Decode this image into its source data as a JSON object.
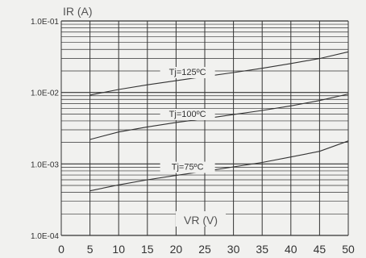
{
  "chart_data": {
    "type": "line",
    "title": "",
    "ylabel": "IR (A)",
    "xlabel": "VR (V)",
    "x_ticks": [
      "0",
      "5",
      "10",
      "15",
      "20",
      "25",
      "30",
      "35",
      "40",
      "45",
      "50"
    ],
    "y_ticks": [
      "1.0E-04",
      "1.0E-03",
      "1.0E-02",
      "1.0E-01"
    ],
    "xlim": [
      0,
      50
    ],
    "ylim": [
      0.0001,
      0.1
    ],
    "y_scale": "log",
    "grid": true,
    "series": [
      {
        "name": "Tj=125ºC",
        "x": [
          5,
          10,
          15,
          20,
          25,
          30,
          35,
          40,
          45,
          50
        ],
        "y": [
          0.0092,
          0.011,
          0.0128,
          0.0146,
          0.0167,
          0.019,
          0.0218,
          0.0254,
          0.0298,
          0.037
        ]
      },
      {
        "name": "Tj=100ºC",
        "x": [
          5,
          10,
          15,
          20,
          25,
          30,
          35,
          40,
          45,
          50
        ],
        "y": [
          0.0022,
          0.0028,
          0.0033,
          0.0038,
          0.0043,
          0.0049,
          0.0056,
          0.0065,
          0.0077,
          0.0095
        ]
      },
      {
        "name": "Tj=75ºC",
        "x": [
          5,
          10,
          15,
          20,
          25,
          30,
          35,
          40,
          45,
          50
        ],
        "y": [
          0.00042,
          0.00051,
          0.0006,
          0.00069,
          0.00079,
          0.00091,
          0.00105,
          0.00125,
          0.0015,
          0.0021
        ]
      }
    ],
    "colors": {
      "background": "#f1f1ef",
      "grid": "#333333",
      "line": "#333333",
      "text": "#333333",
      "axis_title": "#555555"
    }
  }
}
